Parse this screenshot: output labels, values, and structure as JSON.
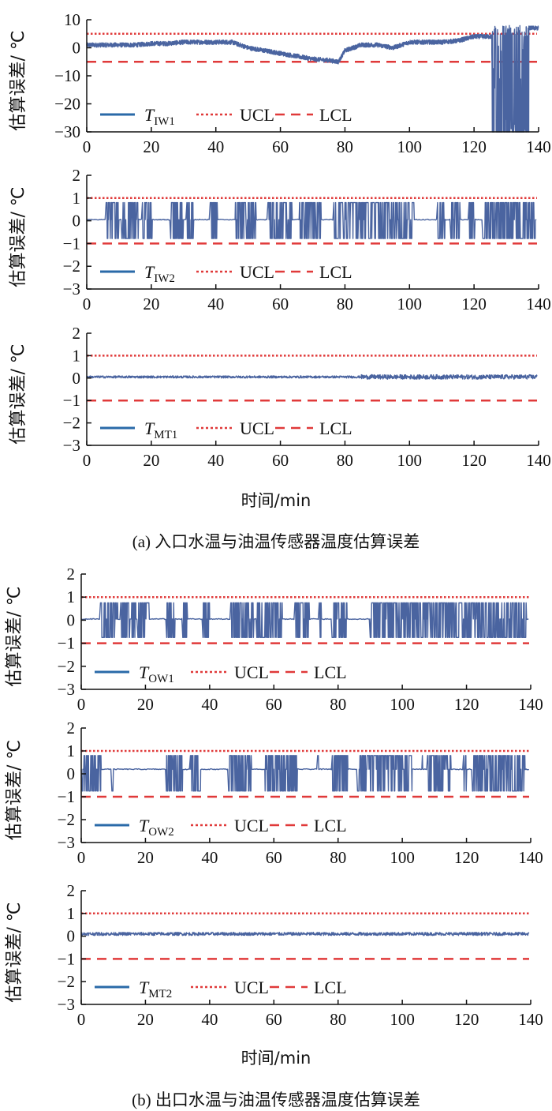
{
  "chart_data": [
    {
      "type": "line",
      "panel": "a",
      "series_label": {
        "main": "T",
        "sub": "IW1"
      },
      "legend": [
        "T_IW1",
        "UCL",
        "LCL"
      ],
      "ylabel": "估算误差/ ℃",
      "xlabel": "",
      "xlim": [
        0,
        140
      ],
      "ylim": [
        -30,
        10
      ],
      "xticks": [
        0,
        20,
        40,
        60,
        80,
        100,
        120,
        140
      ],
      "yticks": [
        10,
        0,
        -10,
        -20,
        -30
      ],
      "ucl": 5,
      "lcl": -5,
      "trend": {
        "x": [
          0,
          5,
          10,
          15,
          20,
          25,
          30,
          35,
          40,
          45,
          50,
          55,
          60,
          65,
          70,
          75,
          78,
          80,
          85,
          90,
          95,
          100,
          105,
          110,
          115,
          120,
          125
        ],
        "y": [
          1,
          1,
          1,
          1,
          1.5,
          1.5,
          2,
          2,
          2,
          2,
          0,
          -1,
          -2,
          -3,
          -4,
          -4.5,
          -5,
          -1,
          1,
          1,
          0,
          2,
          2,
          2,
          2.5,
          4,
          4
        ]
      },
      "chaotic_segment": {
        "x_range": [
          125.5,
          137
        ],
        "y_range": [
          -30,
          8
        ]
      },
      "tail": {
        "x_range": [
          137,
          140
        ],
        "y": 7
      },
      "noise_amplitude": 0.8
    },
    {
      "type": "line",
      "panel": "a",
      "series_label": {
        "main": "T",
        "sub": "IW2"
      },
      "legend": [
        "T_IW2",
        "UCL",
        "LCL"
      ],
      "ylabel": "估算误差/ ℃",
      "xlabel": "",
      "xlim": [
        0,
        140
      ],
      "ylim": [
        -3,
        2
      ],
      "xticks": [
        0,
        20,
        40,
        60,
        80,
        100,
        120,
        140
      ],
      "yticks": [
        2,
        1,
        0,
        -1,
        -2,
        -3
      ],
      "ucl": 1,
      "lcl": -1,
      "baseline": 0.05,
      "high": 0.8,
      "low": -0.78,
      "bursts": [
        [
          5.7,
          9.9
        ],
        [
          10.8,
          16
        ],
        [
          17,
          20.3
        ],
        [
          25.8,
          30
        ],
        [
          31,
          33
        ],
        [
          38,
          40.5
        ],
        [
          45.8,
          52.4
        ],
        [
          56,
          63.7
        ],
        [
          65.6,
          72.6
        ],
        [
          76.4,
          92
        ],
        [
          92,
          101.4
        ],
        [
          108.5,
          111
        ],
        [
          112.7,
          115.6
        ],
        [
          118.4,
          120.3
        ],
        [
          122.6,
          139
        ]
      ]
    },
    {
      "type": "line",
      "panel": "a",
      "series_label": {
        "main": "T",
        "sub": "MT1"
      },
      "legend": [
        "T_MT1",
        "UCL",
        "LCL"
      ],
      "ylabel": "估算误差/ ℃",
      "xlabel": "时间/min",
      "xlim": [
        0,
        140
      ],
      "ylim": [
        -3,
        2
      ],
      "xticks": [
        0,
        20,
        40,
        60,
        80,
        100,
        120,
        140
      ],
      "yticks": [
        2,
        1,
        0,
        -1,
        -2,
        -3
      ],
      "ucl": 1,
      "lcl": -1,
      "baseline": 0.05,
      "noise_amplitude": 0.05,
      "noise_amplitude_after_85": 0.1
    },
    {
      "type": "line",
      "panel": "b",
      "series_label": {
        "main": "T",
        "sub": "OW1"
      },
      "legend": [
        "T_OW1",
        "UCL",
        "LCL"
      ],
      "ylabel": "估算误差/ ℃",
      "xlabel": "",
      "xlim": [
        0,
        140
      ],
      "ylim": [
        -3,
        2
      ],
      "xticks": [
        0,
        20,
        40,
        60,
        80,
        100,
        120,
        140
      ],
      "yticks": [
        2,
        1,
        0,
        -1,
        -2,
        -3
      ],
      "ucl": 1,
      "lcl": -1,
      "baseline": 0.05,
      "high": 0.75,
      "low": -0.75,
      "bursts": [
        [
          5.7,
          11.4
        ],
        [
          12.3,
          17
        ],
        [
          17.5,
          21.2
        ],
        [
          26.4,
          29.2
        ],
        [
          31.6,
          33
        ],
        [
          37.7,
          40
        ],
        [
          46.6,
          53.7
        ],
        [
          54.6,
          62.6
        ],
        [
          66.4,
          71
        ],
        [
          73.9,
          74.8
        ],
        [
          78.1,
          82.8
        ],
        [
          89.9,
          138.7
        ]
      ]
    },
    {
      "type": "line",
      "panel": "b",
      "series_label": {
        "main": "T",
        "sub": "OW2"
      },
      "legend": [
        "T_OW2",
        "UCL",
        "LCL"
      ],
      "ylabel": "估算误差/ ℃",
      "xlabel": "",
      "xlim": [
        0,
        140
      ],
      "ylim": [
        -3,
        2
      ],
      "xticks": [
        0,
        20,
        40,
        60,
        80,
        100,
        120,
        140
      ],
      "yticks": [
        2,
        1,
        0,
        -1,
        -2,
        -3
      ],
      "ucl": 1,
      "lcl": -1,
      "baseline": 0.2,
      "high": 0.8,
      "low": -0.75,
      "bursts": [
        [
          0.1,
          6.2
        ],
        [
          9.5,
          10
        ],
        [
          26.4,
          31.6
        ],
        [
          34,
          37.2
        ],
        [
          45.7,
          53.2
        ],
        [
          57,
          67.3
        ],
        [
          73.4,
          73.9
        ],
        [
          78,
          83
        ],
        [
          86,
          103
        ],
        [
          106,
          106.3
        ],
        [
          107.7,
          115.2
        ],
        [
          119,
          120
        ],
        [
          121.8,
          138.2
        ]
      ]
    },
    {
      "type": "line",
      "panel": "b",
      "series_label": {
        "main": "T",
        "sub": "MT2"
      },
      "legend": [
        "T_MT2",
        "UCL",
        "LCL"
      ],
      "ylabel": "估算误差/ ℃",
      "xlabel": "时间/min",
      "xlim": [
        0,
        140
      ],
      "ylim": [
        -3,
        2
      ],
      "xticks": [
        0,
        20,
        40,
        60,
        80,
        100,
        120,
        140
      ],
      "yticks": [
        2,
        1,
        0,
        -1,
        -2,
        -3
      ],
      "ucl": 1,
      "lcl": -1,
      "baseline": 0.1,
      "noise_amplitude": 0.07
    }
  ],
  "legend_labels": {
    "ucl": "UCL",
    "lcl": "LCL"
  },
  "xlabel_a": "时间/min",
  "xlabel_b": "时间/min",
  "caption_a": "(a) 入口水温与油温传感器温度估算误差",
  "caption_b": "(b) 出口水温与油温传感器温度估算误差",
  "colors": {
    "series": "#4a64a0",
    "legend_line": "#2a6aa8",
    "limits": "#e03a3a",
    "axis": "#111111"
  }
}
